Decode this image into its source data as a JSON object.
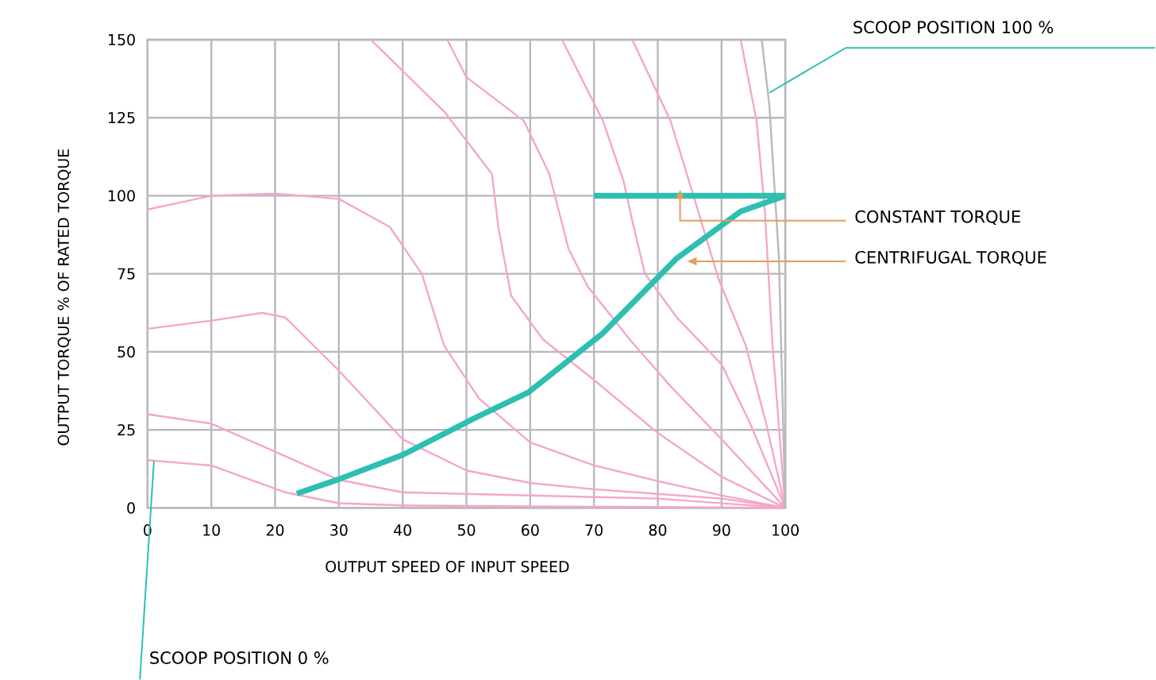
{
  "chart_data": {
    "type": "line",
    "xlabel": "OUTPUT SPEED   OF INPUT SPEED",
    "ylabel": "OUTPUT TORQUE  % OF RATED TORQUE",
    "xlim": [
      0,
      100
    ],
    "ylim": [
      0,
      150
    ],
    "xticks": [
      0,
      10,
      20,
      30,
      40,
      50,
      60,
      70,
      80,
      90,
      100
    ],
    "yticks": [
      0,
      25,
      50,
      75,
      100,
      125,
      150
    ],
    "grid": true,
    "series": [
      {
        "color": "#f4a6cc",
        "x": [
          0,
          10,
          21.6,
          30,
          40,
          60,
          80,
          100
        ],
        "values": [
          15.3,
          13.6,
          5,
          1.5,
          0.8,
          0.5,
          0.3,
          0
        ]
      },
      {
        "color": "#f4a6cc",
        "x": [
          0,
          10,
          20,
          30,
          40,
          60,
          80,
          100
        ],
        "values": [
          30,
          27,
          18,
          9,
          5,
          4,
          3,
          0
        ]
      },
      {
        "color": "#f4a6cc",
        "x": [
          0,
          10,
          18,
          21.6,
          30,
          40,
          50,
          60,
          70,
          80,
          90,
          100
        ],
        "values": [
          57.4,
          60,
          62.5,
          61,
          44,
          22,
          12,
          8,
          6,
          4.5,
          3,
          0
        ]
      },
      {
        "color": "#f4a6cc",
        "x": [
          0,
          10,
          20,
          30,
          38,
          43,
          46.5,
          52,
          60,
          70,
          80,
          90,
          100
        ],
        "values": [
          95.6,
          100,
          100.7,
          99,
          90,
          75,
          52,
          35,
          21,
          13.6,
          8.6,
          4,
          0
        ]
      },
      {
        "color": "#f4a6cc",
        "x": [
          35,
          41.5,
          46.5,
          54,
          55,
          57,
          62,
          70,
          80,
          90,
          100
        ],
        "values": [
          150,
          137,
          127,
          107,
          90,
          68,
          54,
          41,
          24,
          10,
          0
        ]
      },
      {
        "color": "#f4a6cc",
        "x": [
          47,
          50,
          59,
          63,
          64.5,
          66,
          69,
          75.6,
          82,
          90,
          100
        ],
        "values": [
          150,
          138,
          124,
          107,
          95,
          83,
          71,
          54,
          39,
          22,
          0
        ]
      },
      {
        "color": "#f4a6cc",
        "x": [
          65,
          71.4,
          74.6,
          76,
          78,
          83,
          90,
          94.5,
          100
        ],
        "values": [
          150,
          124,
          105,
          92,
          75,
          61,
          46,
          27,
          0
        ]
      },
      {
        "color": "#f4a6cc",
        "x": [
          76,
          82,
          85.6,
          89.6,
          93.8,
          97,
          100
        ],
        "values": [
          150,
          124,
          100,
          73,
          52,
          27,
          0
        ]
      },
      {
        "color": "#f4a6cc",
        "x": [
          93,
          95.5,
          96.8,
          98,
          100
        ],
        "values": [
          150,
          124,
          95,
          52,
          0
        ]
      },
      {
        "color": "#b8b8be",
        "x": [
          96.3,
          97.5,
          99,
          100
        ],
        "values": [
          150,
          129,
          80,
          0
        ]
      },
      {
        "color": "#2dbfb2",
        "x": [
          70,
          100
        ],
        "values": [
          100,
          100
        ]
      },
      {
        "color": "#2dbfb2",
        "x": [
          23.4,
          30,
          40,
          51.5,
          59.7,
          71.4,
          83,
          93,
          100
        ],
        "values": [
          4.6,
          9.2,
          17,
          29,
          37,
          56,
          80,
          95,
          100
        ]
      }
    ],
    "annotations": [
      {
        "text": "SCOOP POSITION 100 %",
        "x": 97.5,
        "y": 133
      },
      {
        "text": "CONSTANT TORQUE",
        "x": 83.5,
        "y": 100
      },
      {
        "text": "CENTRIFUGAL TORQUE",
        "x": 84.6,
        "y": 79
      },
      {
        "text": "SCOOP POSITION 0 %",
        "x": 1,
        "y": 15
      }
    ]
  }
}
